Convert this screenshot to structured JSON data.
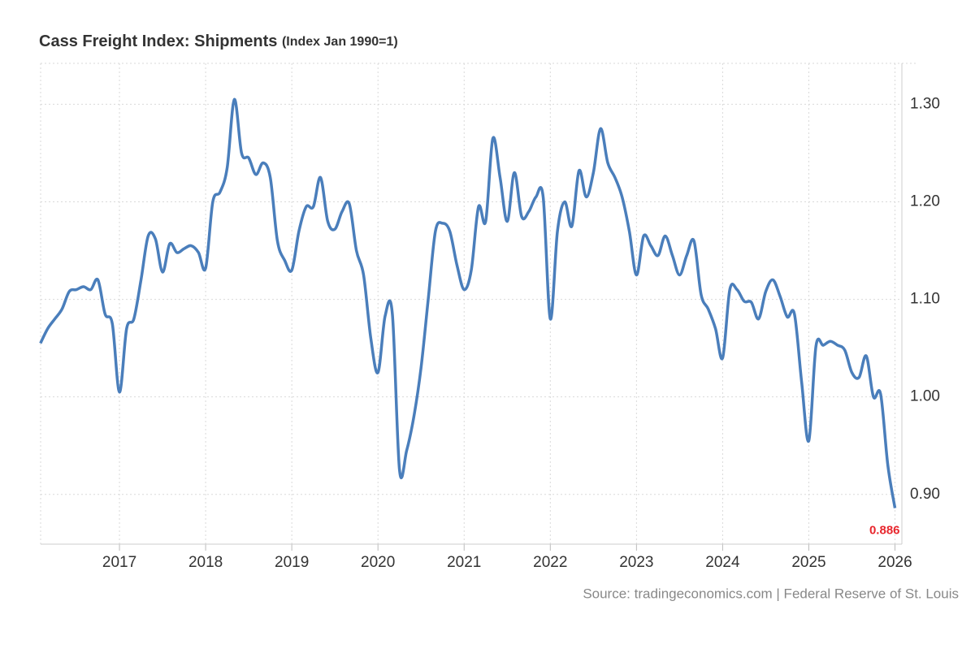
{
  "chart_data": {
    "type": "line",
    "title": "Cass Freight Index: Shipments",
    "subtitle": "(Index Jan 1990=1)",
    "source": "Source: tradingeconomics.com | Federal Reserve of St. Louis",
    "x": [
      2016.083,
      2016.167,
      2016.25,
      2016.333,
      2016.417,
      2016.5,
      2016.583,
      2016.667,
      2016.75,
      2016.833,
      2016.917,
      2017,
      2017.083,
      2017.167,
      2017.25,
      2017.333,
      2017.417,
      2017.5,
      2017.583,
      2017.667,
      2017.75,
      2017.833,
      2017.917,
      2018,
      2018.083,
      2018.167,
      2018.25,
      2018.333,
      2018.417,
      2018.5,
      2018.583,
      2018.667,
      2018.75,
      2018.833,
      2018.917,
      2019,
      2019.083,
      2019.167,
      2019.25,
      2019.333,
      2019.417,
      2019.5,
      2019.583,
      2019.667,
      2019.75,
      2019.833,
      2019.917,
      2020,
      2020.083,
      2020.167,
      2020.25,
      2020.333,
      2020.417,
      2020.5,
      2020.583,
      2020.667,
      2020.75,
      2020.833,
      2020.917,
      2021,
      2021.083,
      2021.167,
      2021.25,
      2021.333,
      2021.417,
      2021.5,
      2021.583,
      2021.667,
      2021.75,
      2021.833,
      2021.917,
      2022,
      2022.083,
      2022.167,
      2022.25,
      2022.333,
      2022.417,
      2022.5,
      2022.583,
      2022.667,
      2022.75,
      2022.833,
      2022.917,
      2023,
      2023.083,
      2023.167,
      2023.25,
      2023.333,
      2023.417,
      2023.5,
      2023.583,
      2023.667,
      2023.75,
      2023.833,
      2023.917,
      2024,
      2024.083,
      2024.167,
      2024.25,
      2024.333,
      2024.417,
      2024.5,
      2024.583,
      2024.667,
      2024.75,
      2024.833,
      2024.917,
      2025,
      2025.083,
      2025.167,
      2025.25,
      2025.333,
      2025.417,
      2025.5,
      2025.583,
      2025.667,
      2025.75,
      2025.833,
      2025.917,
      2026
    ],
    "series": [
      {
        "color": "#4a7ebb",
        "values": [
          1.055,
          1.07,
          1.08,
          1.09,
          1.108,
          1.11,
          1.113,
          1.11,
          1.12,
          1.085,
          1.075,
          1.005,
          1.07,
          1.08,
          1.12,
          1.165,
          1.162,
          1.128,
          1.157,
          1.148,
          1.152,
          1.155,
          1.148,
          1.132,
          1.2,
          1.21,
          1.235,
          1.305,
          1.25,
          1.245,
          1.228,
          1.24,
          1.225,
          1.16,
          1.14,
          1.13,
          1.17,
          1.195,
          1.195,
          1.225,
          1.18,
          1.172,
          1.19,
          1.198,
          1.15,
          1.125,
          1.06,
          1.025,
          1.083,
          1.085,
          0.925,
          0.945,
          0.98,
          1.03,
          1.1,
          1.17,
          1.178,
          1.17,
          1.135,
          1.11,
          1.13,
          1.195,
          1.18,
          1.265,
          1.225,
          1.18,
          1.23,
          1.185,
          1.19,
          1.205,
          1.205,
          1.08,
          1.17,
          1.2,
          1.175,
          1.232,
          1.205,
          1.23,
          1.275,
          1.24,
          1.225,
          1.205,
          1.17,
          1.125,
          1.165,
          1.155,
          1.145,
          1.165,
          1.145,
          1.125,
          1.145,
          1.16,
          1.105,
          1.09,
          1.07,
          1.04,
          1.11,
          1.11,
          1.098,
          1.097,
          1.08,
          1.108,
          1.12,
          1.103,
          1.082,
          1.085,
          1.015,
          0.955,
          1.052,
          1.053,
          1.057,
          1.053,
          1.048,
          1.025,
          1.02,
          1.042,
          1.0,
          1.003,
          0.93,
          0.886
        ],
        "value_labels": [
          null,
          null,
          null,
          null,
          null,
          null,
          null,
          null,
          null,
          null,
          null,
          null,
          null,
          null,
          null,
          null,
          null,
          null,
          null,
          null,
          null,
          null,
          null,
          null,
          null,
          null,
          null,
          null,
          null,
          null,
          null,
          null,
          null,
          null,
          null,
          null,
          null,
          null,
          null,
          null,
          null,
          null,
          null,
          null,
          null,
          null,
          null,
          null,
          null,
          null,
          null,
          null,
          null,
          null,
          null,
          null,
          null,
          null,
          null,
          null,
          null,
          null,
          null,
          null,
          null,
          null,
          null,
          null,
          null,
          null,
          null,
          null,
          null,
          null,
          null,
          null,
          null,
          null,
          null,
          null,
          null,
          null,
          null,
          null,
          null,
          null,
          null,
          null,
          null,
          null,
          null,
          null,
          null,
          null,
          null,
          null,
          null,
          null,
          null,
          null,
          null,
          null,
          null,
          null,
          null,
          null,
          null,
          null,
          null,
          null,
          null,
          null,
          null,
          null,
          null,
          null,
          null,
          null,
          null,
          "0.886"
        ]
      }
    ],
    "xlim": [
      2016.085,
      2026.08
    ],
    "xticks": [
      2017,
      2018,
      2019,
      2020,
      2021,
      2022,
      2023,
      2024,
      2025,
      2026
    ],
    "ylim": [
      0.849,
      1.342
    ],
    "yticks": [
      {
        "value": 0.9,
        "label": "0.90"
      },
      {
        "value": 1.0,
        "label": "1.00"
      },
      {
        "value": 1.1,
        "label": "1.10"
      },
      {
        "value": 1.2,
        "label": "1.20"
      },
      {
        "value": 1.3,
        "label": "1.30"
      }
    ],
    "grid": true
  }
}
